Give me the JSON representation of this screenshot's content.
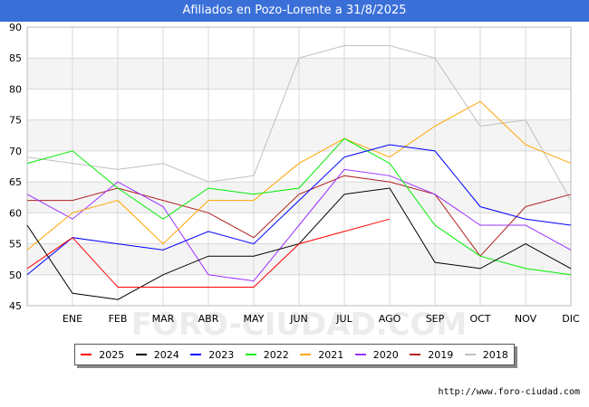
{
  "title": "Afiliados en Pozo-Lorente a 31/8/2025",
  "source": "http://www.foro-ciudad.com",
  "watermark": "FORO-CIUDAD.COM",
  "chart_data": {
    "type": "line",
    "title": "Afiliados en Pozo-Lorente a 31/8/2025",
    "categories": [
      "",
      "ENE",
      "FEB",
      "MAR",
      "ABR",
      "MAY",
      "JUN",
      "JUL",
      "AGO",
      "SEP",
      "OCT",
      "NOV",
      "DIC"
    ],
    "ylim": [
      45,
      90
    ],
    "yticks": [
      45,
      50,
      55,
      60,
      65,
      70,
      75,
      80,
      85,
      90
    ],
    "grid": true,
    "legend_position": "bottom",
    "series": [
      {
        "name": "2025",
        "color": "#ff0000",
        "values": [
          51,
          56,
          48,
          48,
          48,
          48,
          55,
          57,
          59,
          null,
          null,
          null,
          null
        ]
      },
      {
        "name": "2024",
        "color": "#000000",
        "values": [
          58,
          47,
          46,
          50,
          53,
          53,
          55,
          63,
          64,
          52,
          51,
          55,
          51
        ]
      },
      {
        "name": "2023",
        "color": "#0000ff",
        "values": [
          50,
          56,
          55,
          54,
          57,
          55,
          62,
          69,
          71,
          70,
          61,
          59,
          58
        ]
      },
      {
        "name": "2022",
        "color": "#00ee00",
        "values": [
          68,
          70,
          64,
          59,
          64,
          63,
          64,
          72,
          68,
          58,
          53,
          51,
          50
        ]
      },
      {
        "name": "2021",
        "color": "#ffa500",
        "values": [
          54,
          60,
          62,
          55,
          62,
          62,
          68,
          72,
          69,
          74,
          78,
          71,
          68
        ]
      },
      {
        "name": "2020",
        "color": "#9b30ff",
        "values": [
          63,
          59,
          65,
          61,
          50,
          49,
          58,
          67,
          66,
          63,
          58,
          58,
          54
        ]
      },
      {
        "name": "2019",
        "color": "#b22222",
        "values": [
          62,
          62,
          64,
          62,
          60,
          56,
          63,
          66,
          65,
          63,
          53,
          61,
          63
        ]
      },
      {
        "name": "2018",
        "color": "#c0c0c0",
        "values": [
          69,
          68,
          67,
          68,
          65,
          66,
          85,
          87,
          87,
          85,
          74,
          75,
          62
        ]
      }
    ]
  }
}
